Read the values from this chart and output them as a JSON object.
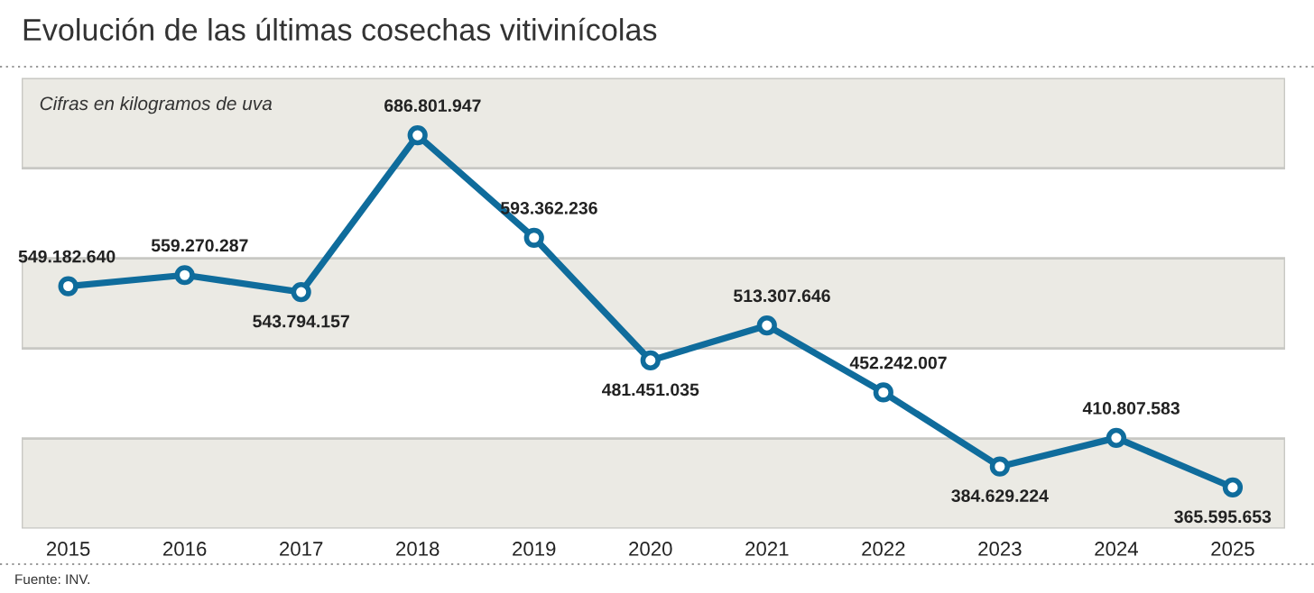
{
  "chart_data": {
    "type": "line",
    "title": "Evolución de las últimas cosechas vitivinícolas",
    "categories": [
      "2015",
      "2016",
      "2017",
      "2018",
      "2019",
      "2020",
      "2021",
      "2022",
      "2023",
      "2024",
      "2025"
    ],
    "series": [
      {
        "color": "#0f6c9c",
        "values": [
          549182640,
          559270287,
          543794157,
          686801947,
          593362236,
          481451035,
          513307646,
          452242007,
          384629224,
          410807583,
          365595653
        ],
        "value_labels": [
          "549.182.640",
          "559.270.287",
          "543.794.157",
          "686.801.947",
          "593.362.236",
          "481.451.035",
          "513.307.646",
          "452.242.007",
          "384.629.224",
          "410.807.583",
          "365.595.653"
        ]
      }
    ],
    "annotations": [
      "Cifras en kilogramos de uva",
      "Fuente: INV."
    ],
    "marker": "circle",
    "line_style": "solid",
    "grid": false,
    "legend": false,
    "tick_labels": "x"
  }
}
